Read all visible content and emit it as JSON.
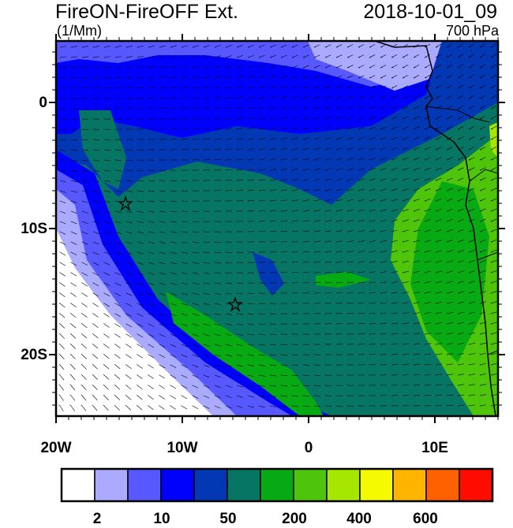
{
  "header": {
    "title": "FireON-FireOFF Ext.",
    "date": "2018-10-01_09",
    "units": "(1/Mm)",
    "level": "700 hPa"
  },
  "map": {
    "lon_labels": [
      "20W",
      "10W",
      "0",
      "10E"
    ],
    "lat_labels": [
      "0",
      "10S",
      "20S"
    ],
    "markers": [
      {
        "name": "star",
        "lon": -14.5,
        "lat": -8
      },
      {
        "name": "star",
        "lon": -5.8,
        "lat": -16
      }
    ],
    "colors": {
      "background": "#07735f",
      "coastline": "#000000",
      "barbs": "#000000"
    }
  },
  "colorbar": {
    "colors": [
      "#ffffff",
      "#aaaaff",
      "#5858ff",
      "#0000ff",
      "#0338b4",
      "#077563",
      "#07aa12",
      "#4ec40a",
      "#a6e600",
      "#f5fa00",
      "#ffb400",
      "#ff6000",
      "#ff0c00"
    ],
    "labels": [
      "2",
      "10",
      "50",
      "200",
      "400",
      "600"
    ]
  }
}
